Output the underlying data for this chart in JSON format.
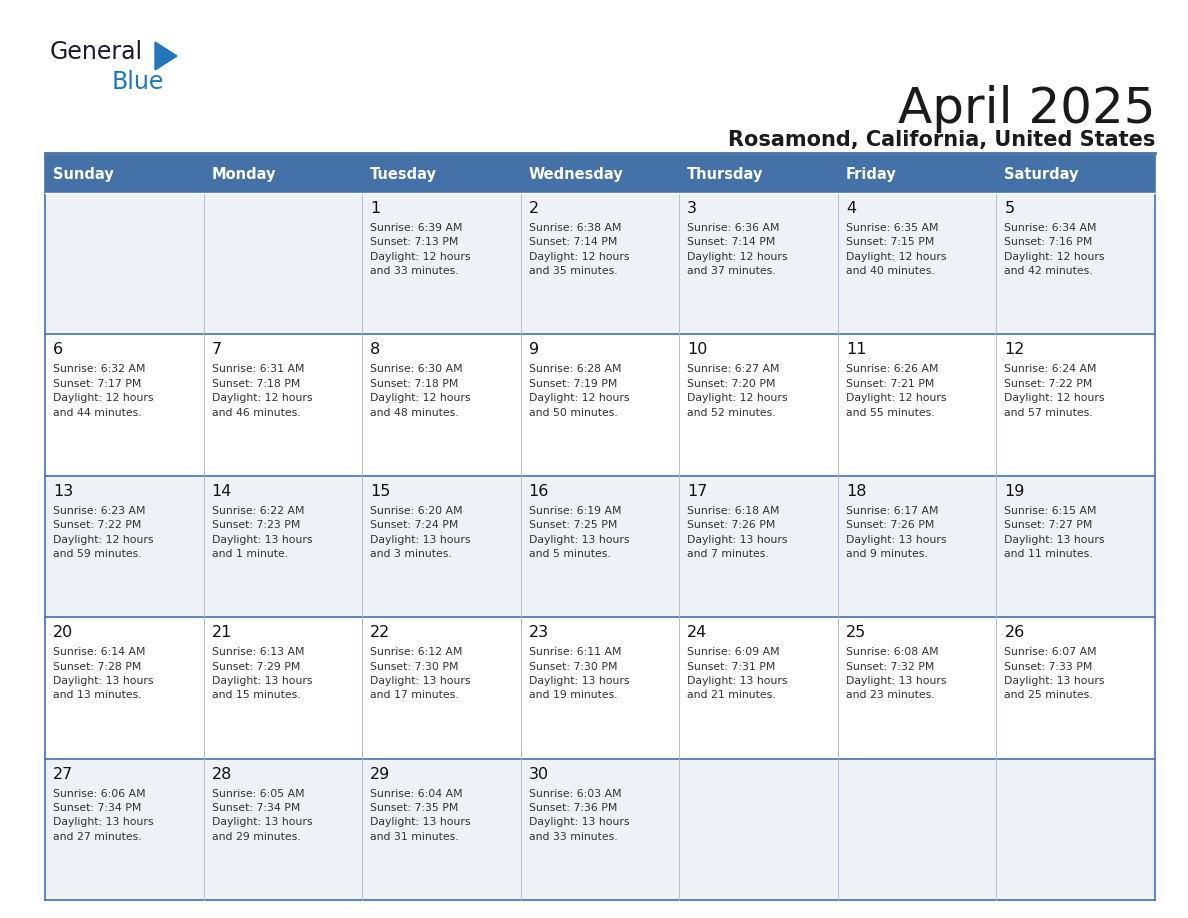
{
  "title": "April 2025",
  "subtitle": "Rosamond, California, United States",
  "header_bg_color": "#4472a8",
  "header_text_color": "#ffffff",
  "row_bg_odd": "#eef2f7",
  "row_bg_even": "#ffffff",
  "text_color": "#222222",
  "border_color": "#4472a8",
  "days_of_week": [
    "Sunday",
    "Monday",
    "Tuesday",
    "Wednesday",
    "Thursday",
    "Friday",
    "Saturday"
  ],
  "weeks": [
    [
      {
        "day": null,
        "info": null
      },
      {
        "day": null,
        "info": null
      },
      {
        "day": 1,
        "info": "Sunrise: 6:39 AM\nSunset: 7:13 PM\nDaylight: 12 hours\nand 33 minutes."
      },
      {
        "day": 2,
        "info": "Sunrise: 6:38 AM\nSunset: 7:14 PM\nDaylight: 12 hours\nand 35 minutes."
      },
      {
        "day": 3,
        "info": "Sunrise: 6:36 AM\nSunset: 7:14 PM\nDaylight: 12 hours\nand 37 minutes."
      },
      {
        "day": 4,
        "info": "Sunrise: 6:35 AM\nSunset: 7:15 PM\nDaylight: 12 hours\nand 40 minutes."
      },
      {
        "day": 5,
        "info": "Sunrise: 6:34 AM\nSunset: 7:16 PM\nDaylight: 12 hours\nand 42 minutes."
      }
    ],
    [
      {
        "day": 6,
        "info": "Sunrise: 6:32 AM\nSunset: 7:17 PM\nDaylight: 12 hours\nand 44 minutes."
      },
      {
        "day": 7,
        "info": "Sunrise: 6:31 AM\nSunset: 7:18 PM\nDaylight: 12 hours\nand 46 minutes."
      },
      {
        "day": 8,
        "info": "Sunrise: 6:30 AM\nSunset: 7:18 PM\nDaylight: 12 hours\nand 48 minutes."
      },
      {
        "day": 9,
        "info": "Sunrise: 6:28 AM\nSunset: 7:19 PM\nDaylight: 12 hours\nand 50 minutes."
      },
      {
        "day": 10,
        "info": "Sunrise: 6:27 AM\nSunset: 7:20 PM\nDaylight: 12 hours\nand 52 minutes."
      },
      {
        "day": 11,
        "info": "Sunrise: 6:26 AM\nSunset: 7:21 PM\nDaylight: 12 hours\nand 55 minutes."
      },
      {
        "day": 12,
        "info": "Sunrise: 6:24 AM\nSunset: 7:22 PM\nDaylight: 12 hours\nand 57 minutes."
      }
    ],
    [
      {
        "day": 13,
        "info": "Sunrise: 6:23 AM\nSunset: 7:22 PM\nDaylight: 12 hours\nand 59 minutes."
      },
      {
        "day": 14,
        "info": "Sunrise: 6:22 AM\nSunset: 7:23 PM\nDaylight: 13 hours\nand 1 minute."
      },
      {
        "day": 15,
        "info": "Sunrise: 6:20 AM\nSunset: 7:24 PM\nDaylight: 13 hours\nand 3 minutes."
      },
      {
        "day": 16,
        "info": "Sunrise: 6:19 AM\nSunset: 7:25 PM\nDaylight: 13 hours\nand 5 minutes."
      },
      {
        "day": 17,
        "info": "Sunrise: 6:18 AM\nSunset: 7:26 PM\nDaylight: 13 hours\nand 7 minutes."
      },
      {
        "day": 18,
        "info": "Sunrise: 6:17 AM\nSunset: 7:26 PM\nDaylight: 13 hours\nand 9 minutes."
      },
      {
        "day": 19,
        "info": "Sunrise: 6:15 AM\nSunset: 7:27 PM\nDaylight: 13 hours\nand 11 minutes."
      }
    ],
    [
      {
        "day": 20,
        "info": "Sunrise: 6:14 AM\nSunset: 7:28 PM\nDaylight: 13 hours\nand 13 minutes."
      },
      {
        "day": 21,
        "info": "Sunrise: 6:13 AM\nSunset: 7:29 PM\nDaylight: 13 hours\nand 15 minutes."
      },
      {
        "day": 22,
        "info": "Sunrise: 6:12 AM\nSunset: 7:30 PM\nDaylight: 13 hours\nand 17 minutes."
      },
      {
        "day": 23,
        "info": "Sunrise: 6:11 AM\nSunset: 7:30 PM\nDaylight: 13 hours\nand 19 minutes."
      },
      {
        "day": 24,
        "info": "Sunrise: 6:09 AM\nSunset: 7:31 PM\nDaylight: 13 hours\nand 21 minutes."
      },
      {
        "day": 25,
        "info": "Sunrise: 6:08 AM\nSunset: 7:32 PM\nDaylight: 13 hours\nand 23 minutes."
      },
      {
        "day": 26,
        "info": "Sunrise: 6:07 AM\nSunset: 7:33 PM\nDaylight: 13 hours\nand 25 minutes."
      }
    ],
    [
      {
        "day": 27,
        "info": "Sunrise: 6:06 AM\nSunset: 7:34 PM\nDaylight: 13 hours\nand 27 minutes."
      },
      {
        "day": 28,
        "info": "Sunrise: 6:05 AM\nSunset: 7:34 PM\nDaylight: 13 hours\nand 29 minutes."
      },
      {
        "day": 29,
        "info": "Sunrise: 6:04 AM\nSunset: 7:35 PM\nDaylight: 13 hours\nand 31 minutes."
      },
      {
        "day": 30,
        "info": "Sunrise: 6:03 AM\nSunset: 7:36 PM\nDaylight: 13 hours\nand 33 minutes."
      },
      {
        "day": null,
        "info": null
      },
      {
        "day": null,
        "info": null
      },
      {
        "day": null,
        "info": null
      }
    ]
  ],
  "logo_text_general": "General",
  "logo_text_blue": "Blue",
  "logo_color_general": "#1a1a2e",
  "logo_color_blue": "#2277bb",
  "logo_triangle_color": "#2277bb",
  "title_color": "#1a1a1a",
  "subtitle_color": "#1a1a1a"
}
